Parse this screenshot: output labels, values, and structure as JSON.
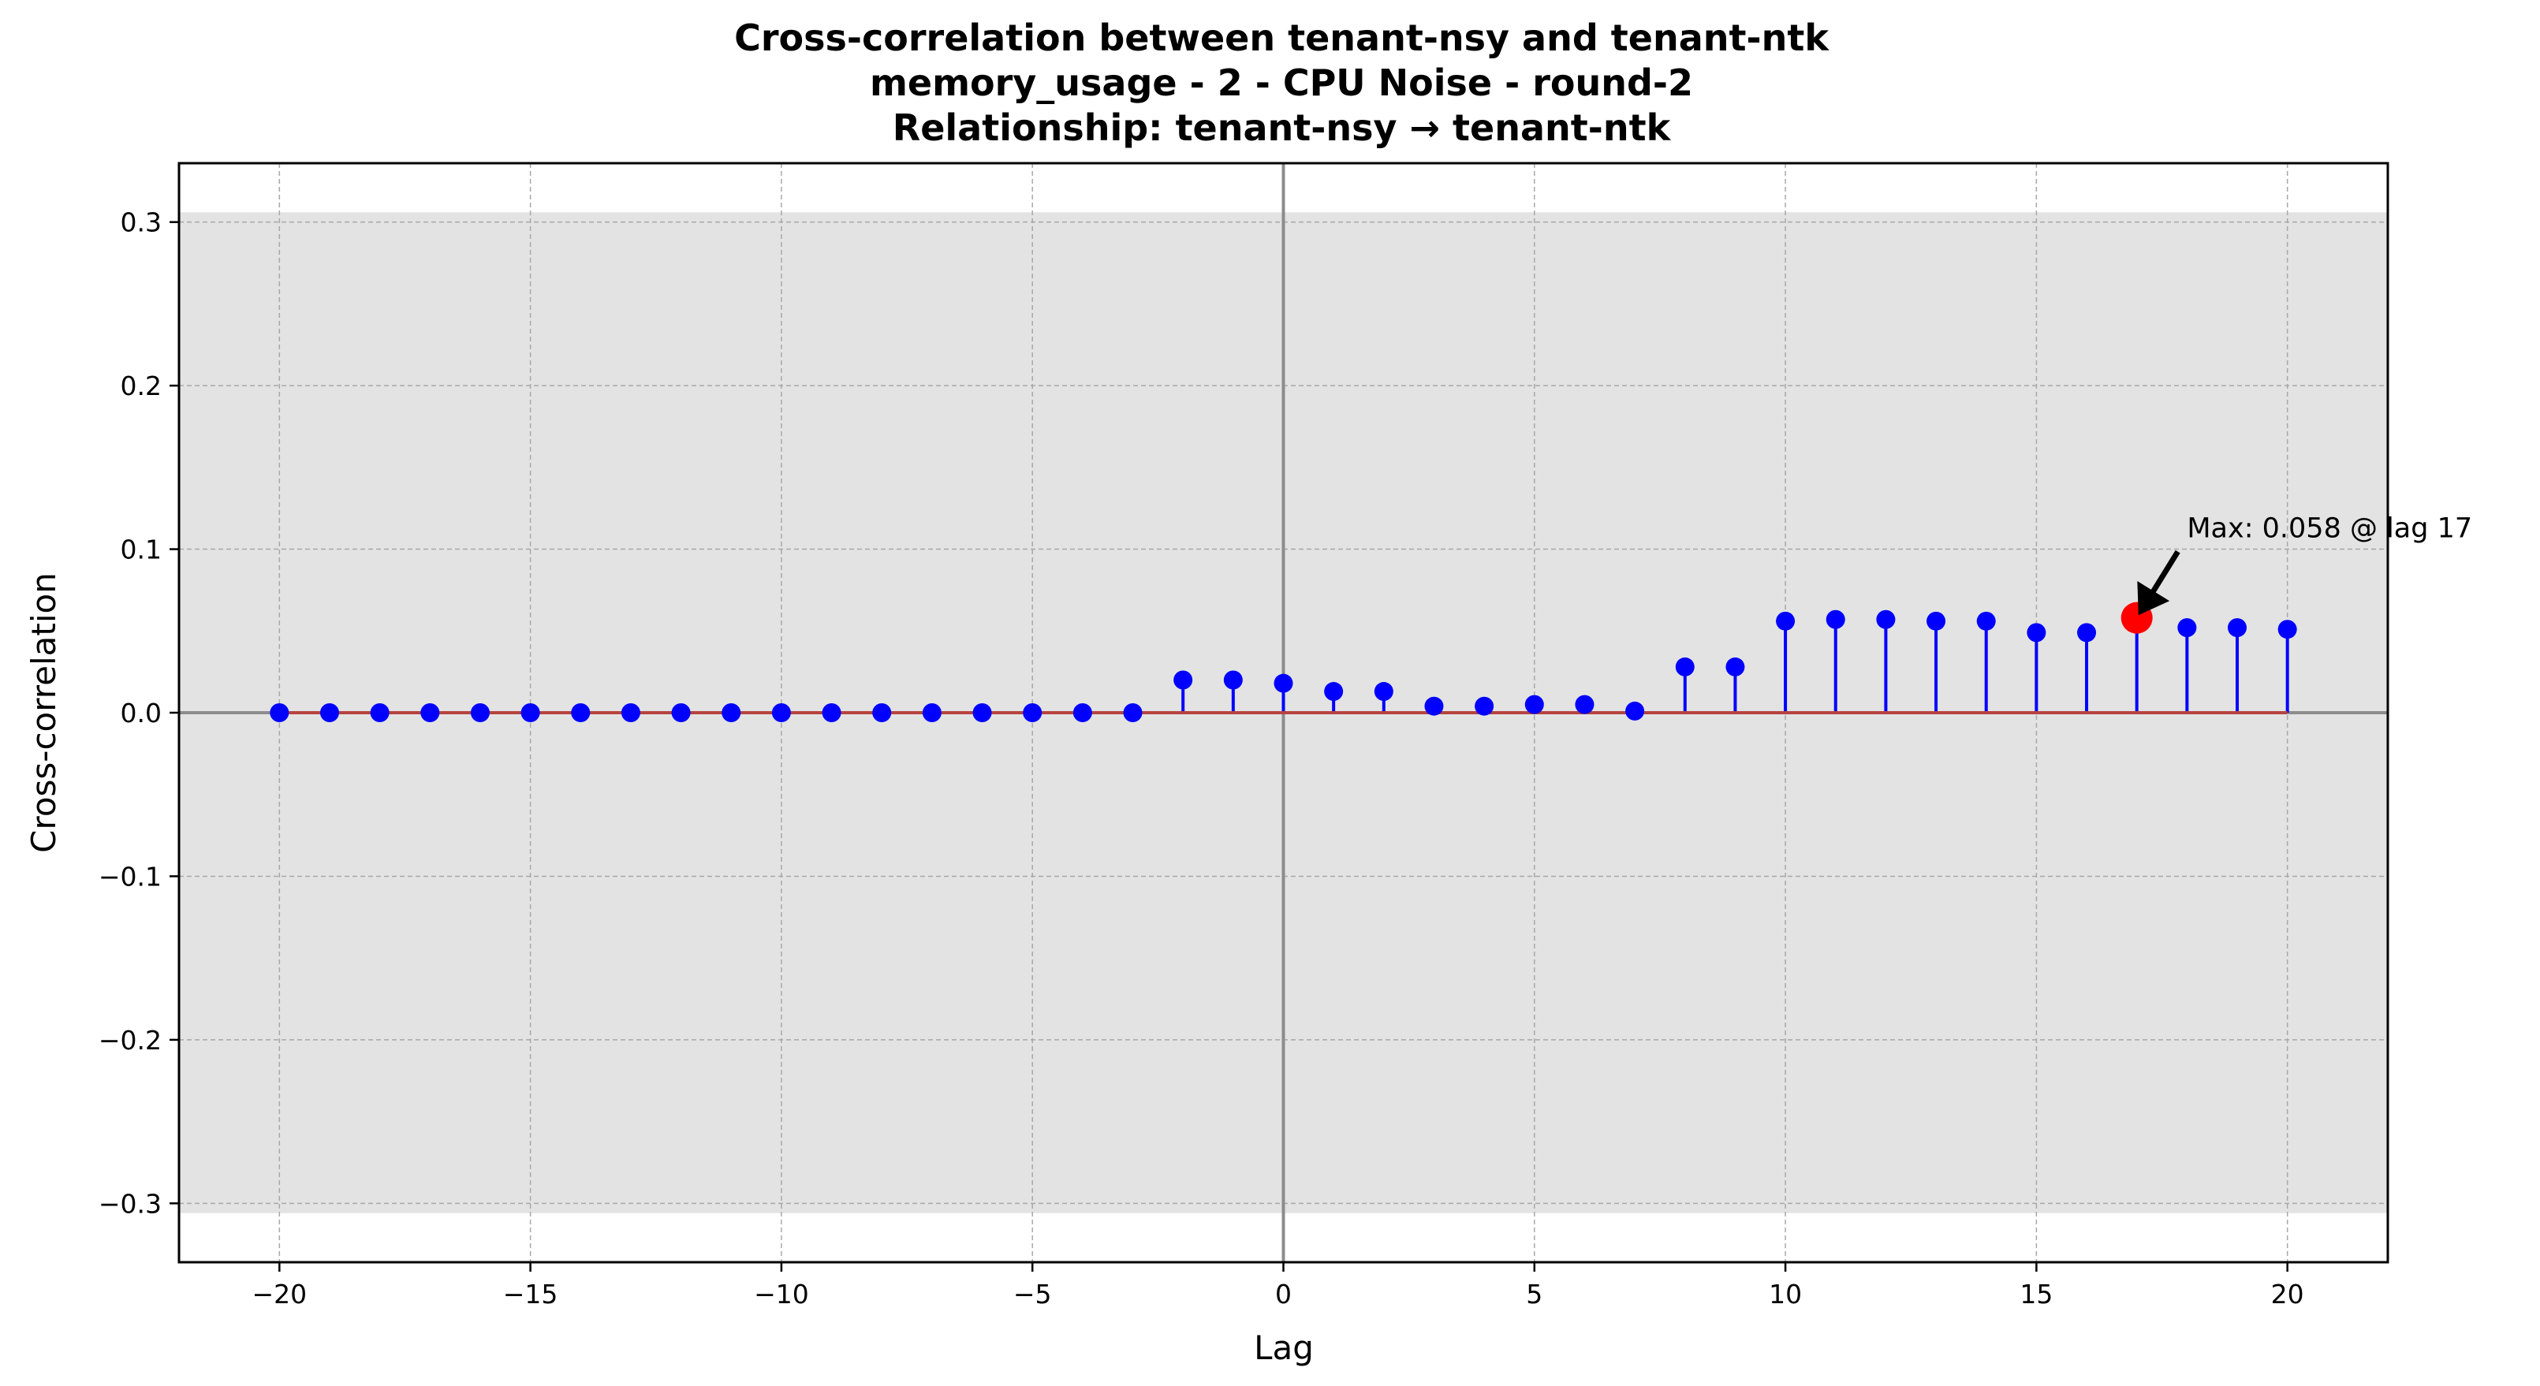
{
  "chart_data": {
    "type": "stem",
    "title_lines": [
      "Cross-correlation between tenant-nsy and tenant-ntk",
      "memory_usage - 2 - CPU Noise - round-2",
      "Relationship: tenant-nsy → tenant-ntk"
    ],
    "xlabel": "Lag",
    "ylabel": "Cross-correlation",
    "xlim": [
      -22,
      22
    ],
    "ylim": [
      -0.336,
      0.336
    ],
    "xticks": [
      -20,
      -15,
      -10,
      -5,
      0,
      5,
      10,
      15,
      20
    ],
    "xtick_labels": [
      "−20",
      "−15",
      "−10",
      "−5",
      "0",
      "5",
      "10",
      "15",
      "20"
    ],
    "yticks": [
      -0.3,
      -0.2,
      -0.1,
      0.0,
      0.1,
      0.2,
      0.3
    ],
    "ytick_labels": [
      "−0.3",
      "−0.2",
      "−0.1",
      "0.0",
      "0.1",
      "0.2",
      "0.3"
    ],
    "grid": true,
    "confidence_band": [
      -0.306,
      0.306
    ],
    "x": [
      -20,
      -19,
      -18,
      -17,
      -16,
      -15,
      -14,
      -13,
      -12,
      -11,
      -10,
      -9,
      -8,
      -7,
      -6,
      -5,
      -4,
      -3,
      -2,
      -1,
      0,
      1,
      2,
      3,
      4,
      5,
      6,
      7,
      8,
      9,
      10,
      11,
      12,
      13,
      14,
      15,
      16,
      17,
      18,
      19,
      20
    ],
    "values": [
      0,
      0,
      0,
      0,
      0,
      0,
      0,
      0,
      0,
      0,
      0,
      0,
      0,
      0,
      0,
      0,
      0,
      0,
      0.02,
      0.02,
      0.018,
      0.013,
      0.013,
      0.004,
      0.004,
      0.005,
      0.005,
      0.001,
      0.028,
      0.028,
      0.056,
      0.057,
      0.057,
      0.056,
      0.056,
      0.049,
      0.049,
      0.058,
      0.052,
      0.052,
      0.051
    ],
    "max_point": {
      "lag": 17,
      "value": 0.058
    },
    "annotation": "Max: 0.058 @ lag 17",
    "colors": {
      "stem": "#0000ff",
      "baseline": "#b5443e",
      "max_marker": "#ff0000",
      "band": "#e3e3e3",
      "zero_lines": "#8c8c8c",
      "grid": "#a8a8a8"
    }
  }
}
